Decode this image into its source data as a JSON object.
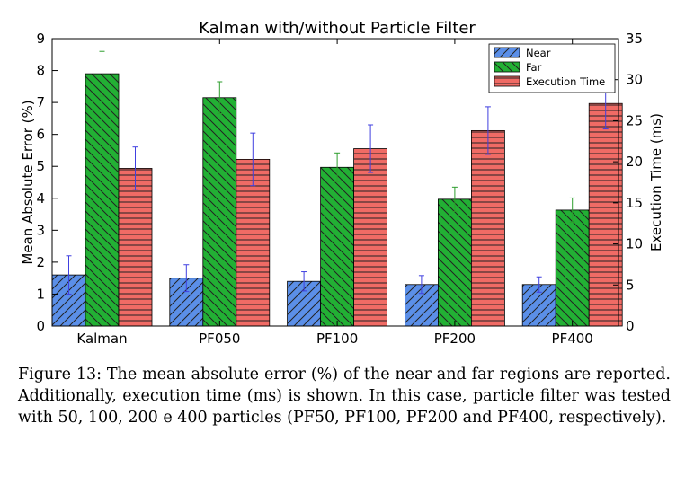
{
  "chart_data": {
    "type": "bar",
    "title": "Kalman with/without Particle Filter",
    "ylabel": "Mean Absolute Error (%)",
    "ylabel_right": "Execution Time (ms)",
    "categories": [
      "Kalman",
      "PF050",
      "PF100",
      "PF200",
      "PF400"
    ],
    "ylim": [
      0,
      9
    ],
    "ylim_right": [
      0,
      35
    ],
    "yticks": [
      0,
      1,
      2,
      3,
      4,
      5,
      6,
      7,
      8,
      9
    ],
    "yticks_right": [
      0,
      5,
      10,
      15,
      20,
      25,
      30,
      35
    ],
    "legend_position": "top-right",
    "series": [
      {
        "name": "Near",
        "axis": "left",
        "color": "#5b8fe8",
        "hatch": "diagonal-up",
        "error_color": "#4040e0",
        "values": [
          1.6,
          1.5,
          1.4,
          1.3,
          1.3
        ],
        "errors": [
          0.6,
          0.42,
          0.3,
          0.28,
          0.24
        ]
      },
      {
        "name": "Far",
        "axis": "left",
        "color": "#22b034",
        "hatch": "diagonal-down",
        "error_color": "#2e9e2e",
        "values": [
          7.9,
          7.15,
          4.97,
          3.97,
          3.63
        ],
        "errors": [
          0.7,
          0.5,
          0.45,
          0.38,
          0.38
        ]
      },
      {
        "name": "Execution Time",
        "axis": "right",
        "color": "#f06b65",
        "hatch": "horizontal",
        "error_color": "#4040e0",
        "values": [
          19.2,
          20.3,
          21.6,
          23.8,
          27.1
        ],
        "errors": [
          2.6,
          3.2,
          2.9,
          2.9,
          3.1
        ]
      }
    ]
  },
  "caption": "Figure 13: The mean absolute error (%) of the near and far regions are reported. Additionally, execution time (ms) is shown. In this case, particle filter was tested with 50, 100, 200 e 400 particles (PF50, PF100, PF200 and PF400, respectively)."
}
